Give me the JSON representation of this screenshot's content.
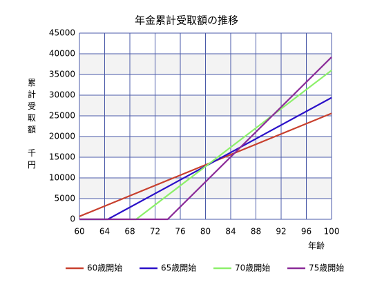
{
  "chart_data": {
    "type": "line",
    "title": "年金累計受取額の推移",
    "y_label": "累計受取額　千円",
    "x_label": "年齢",
    "xlim": [
      60,
      100
    ],
    "xticks": [
      60,
      64,
      68,
      72,
      76,
      80,
      84,
      88,
      92,
      96,
      100
    ],
    "ylim": [
      0,
      45000
    ],
    "yticks": [
      0,
      5000,
      10000,
      15000,
      20000,
      25000,
      30000,
      35000,
      40000,
      45000
    ],
    "grid": true,
    "legend": "bottom",
    "series": [
      {
        "name": "60歳開始",
        "color": "#c8402e",
        "x": [
          60,
          100
        ],
        "values": [
          700,
          25600
        ]
      },
      {
        "name": "65歳開始",
        "color": "#2a10c8",
        "x": [
          60,
          64.5,
          100
        ],
        "values": [
          0,
          0,
          29400
        ]
      },
      {
        "name": "70歳開始",
        "color": "#8cf06a",
        "x": [
          60,
          69,
          100
        ],
        "values": [
          0,
          0,
          36000
        ]
      },
      {
        "name": "75歳開始",
        "color": "#8a2a98",
        "x": [
          60,
          74,
          100
        ],
        "values": [
          0,
          0,
          39200
        ]
      }
    ]
  }
}
